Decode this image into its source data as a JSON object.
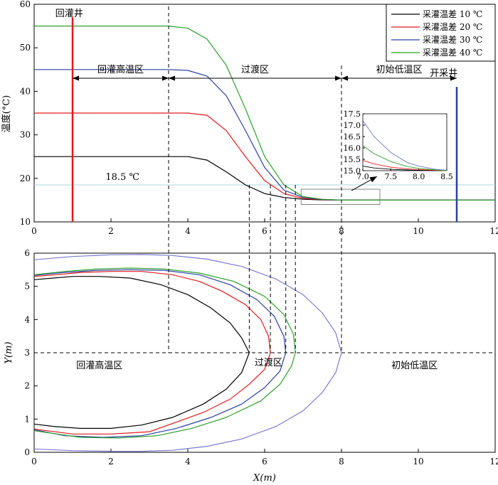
{
  "chart_data": [
    {
      "type": "line",
      "ylabel": "温度(°C)",
      "xlim": [
        0,
        12
      ],
      "ylim": [
        10,
        60
      ],
      "xticks": [
        0,
        2,
        4,
        6,
        8,
        10,
        12
      ],
      "yticks": [
        10,
        20,
        30,
        40,
        50,
        60
      ],
      "legend": {
        "position": "top-right",
        "entries": [
          "采灌温差 10 ℃",
          "采灌温差 20 ℃",
          "采灌温差 30 ℃",
          "采灌温差 40 ℃"
        ]
      },
      "series": [
        {
          "name": "采灌温差 10 ℃",
          "color": "#000000",
          "x": [
            0,
            3.5,
            4.0,
            4.5,
            5.0,
            5.5,
            6.0,
            6.5,
            7.0,
            7.5,
            8.0,
            9.0,
            10.0,
            11.0,
            12.0
          ],
          "y": [
            25,
            25,
            25,
            24.2,
            21.5,
            18.5,
            16.5,
            15.6,
            15.2,
            15.05,
            15.0,
            15.0,
            15.0,
            15.0,
            15.0
          ]
        },
        {
          "name": "采灌温差 20 ℃",
          "color": "#e41a1c",
          "x": [
            0,
            3.5,
            4.0,
            4.5,
            5.0,
            5.5,
            6.0,
            6.5,
            7.0,
            7.5,
            8.0,
            9.0,
            10.0,
            11.0,
            12.0
          ],
          "y": [
            35,
            35,
            35,
            34.5,
            31.0,
            25.0,
            19.5,
            16.5,
            15.4,
            15.1,
            15.0,
            15.0,
            15.0,
            15.0,
            15.0
          ]
        },
        {
          "name": "采灌温差 30 ℃",
          "color": "#2b3fa3",
          "x": [
            0,
            3.5,
            4.0,
            4.5,
            5.0,
            5.5,
            6.0,
            6.5,
            7.0,
            7.5,
            8.0,
            9.0,
            10.0,
            11.0,
            12.0
          ],
          "y": [
            45,
            45,
            44.8,
            43.5,
            39.0,
            31.0,
            22.5,
            17.3,
            15.6,
            15.15,
            15.0,
            15.0,
            15.0,
            15.0,
            15.0
          ]
        },
        {
          "name": "采灌温差 40 ℃",
          "color": "#2ca02c",
          "x": [
            0,
            3.5,
            4.0,
            4.5,
            5.0,
            5.5,
            6.0,
            6.5,
            7.0,
            7.5,
            8.0,
            9.0,
            10.0,
            11.0,
            12.0
          ],
          "y": [
            55,
            55,
            54.5,
            52.0,
            46.0,
            36.0,
            25.0,
            18.5,
            15.8,
            15.2,
            15.0,
            15.0,
            15.0,
            15.0,
            15.0
          ]
        }
      ],
      "reference_line": {
        "y": 18.5,
        "label": "18.5 ℃",
        "color": "#a8d4dc"
      },
      "wells": [
        {
          "label": "回灌井",
          "x": 1,
          "color": "#e41a1c"
        },
        {
          "label": "开采井",
          "x": 11,
          "color": "#2b3fa3"
        }
      ],
      "dividers_x": [
        3.5,
        8.0
      ],
      "zones": [
        "回灌高温区",
        "过渡区",
        "初始低温区"
      ],
      "zone_arrow_y": 43,
      "inset": {
        "xlim": [
          7.0,
          8.5
        ],
        "ylim": [
          15.0,
          17.5
        ],
        "xticks": [
          "7.0",
          "7.5",
          "8.0",
          "8.5"
        ],
        "yticks": [
          "15.0",
          "15.5",
          "16.0",
          "16.5",
          "17.0",
          "17.5"
        ],
        "series": [
          {
            "color": "#000000",
            "x": [
              7.0,
              7.2,
              7.5,
              7.8,
              8.0,
              8.3,
              8.5
            ],
            "y": [
              15.2,
              15.12,
              15.06,
              15.03,
              15.02,
              15.01,
              15.0
            ]
          },
          {
            "color": "#e41a1c",
            "x": [
              7.0,
              7.2,
              7.5,
              7.8,
              8.0,
              8.3,
              8.5
            ],
            "y": [
              15.45,
              15.3,
              15.15,
              15.08,
              15.05,
              15.02,
              15.0
            ]
          },
          {
            "color": "#2ca02c",
            "x": [
              7.0,
              7.2,
              7.5,
              7.8,
              8.0,
              8.3,
              8.5
            ],
            "y": [
              16.1,
              15.75,
              15.4,
              15.18,
              15.1,
              15.03,
              15.0
            ]
          },
          {
            "color": "#6b78b8",
            "x": [
              7.0,
              7.2,
              7.5,
              7.8,
              8.0,
              8.3,
              8.5
            ],
            "y": [
              17.2,
              16.5,
              15.8,
              15.35,
              15.2,
              15.06,
              15.02
            ]
          }
        ],
        "zoom_box": {
          "x": [
            6.95,
            9.0
          ],
          "y": [
            14.0,
            17.5
          ]
        }
      }
    },
    {
      "type": "line",
      "xlabel": "X(m)",
      "ylabel": "Y(m)",
      "xlim": [
        0,
        12
      ],
      "ylim": [
        0,
        6
      ],
      "xticks": [
        0,
        2,
        4,
        6,
        8,
        10,
        12
      ],
      "yticks": [
        0,
        1,
        2,
        3,
        4,
        5,
        6
      ],
      "centerline_y": 3,
      "dividers_x": [
        3.5,
        8.0
      ],
      "zones": [
        "回灌高温区",
        "过渡区",
        "初始低温区"
      ],
      "fronts_x": [
        5.6,
        6.15,
        6.55,
        6.8
      ],
      "series": [
        {
          "color": "#000000",
          "x": [
            0,
            0.5,
            1.0,
            1.7,
            2.5,
            3.3,
            4.0,
            4.6,
            5.1,
            5.4,
            5.6,
            5.4,
            5.0,
            4.4,
            3.6,
            2.8,
            2.0,
            1.2,
            0.5,
            0
          ],
          "y": [
            5.2,
            5.25,
            5.3,
            5.3,
            5.25,
            5.05,
            4.75,
            4.35,
            3.9,
            3.45,
            3.0,
            2.4,
            1.9,
            1.45,
            1.05,
            0.82,
            0.72,
            0.72,
            0.78,
            0.85
          ]
        },
        {
          "color": "#e41a1c",
          "x": [
            0,
            0.6,
            1.2,
            2.0,
            2.8,
            3.6,
            4.3,
            4.9,
            5.5,
            5.9,
            6.1,
            6.15,
            6.0,
            5.6,
            5.1,
            4.4,
            3.8,
            3.0,
            2.0,
            1.0,
            0
          ],
          "y": [
            5.3,
            5.35,
            5.42,
            5.45,
            5.45,
            5.35,
            5.15,
            4.85,
            4.45,
            4.0,
            3.5,
            3.0,
            2.5,
            2.05,
            1.6,
            1.2,
            0.95,
            0.62,
            0.55,
            0.55,
            0.7
          ]
        },
        {
          "color": "#2b3fa3",
          "x": [
            0,
            0.8,
            1.6,
            2.5,
            3.4,
            4.3,
            5.1,
            5.8,
            6.25,
            6.5,
            6.55,
            6.4,
            6.0,
            5.4,
            4.6,
            3.7,
            2.8,
            1.8,
            0.8,
            0
          ],
          "y": [
            5.33,
            5.42,
            5.48,
            5.5,
            5.48,
            5.35,
            5.05,
            4.6,
            4.1,
            3.5,
            3.0,
            2.45,
            1.95,
            1.45,
            1.05,
            0.72,
            0.5,
            0.45,
            0.5,
            0.68
          ]
        },
        {
          "color": "#2ca02c",
          "x": [
            0,
            0.8,
            1.6,
            2.5,
            3.4,
            4.3,
            5.2,
            6.0,
            6.5,
            6.75,
            6.8,
            6.7,
            6.4,
            5.9,
            5.0,
            4.1,
            3.2,
            2.2,
            1.2,
            0
          ],
          "y": [
            5.35,
            5.45,
            5.52,
            5.55,
            5.52,
            5.4,
            5.15,
            4.7,
            4.15,
            3.55,
            3.0,
            2.6,
            2.05,
            1.55,
            1.05,
            0.72,
            0.5,
            0.43,
            0.45,
            0.65
          ]
        },
        {
          "color": "#7b7bd1",
          "x": [
            0,
            1.0,
            2.0,
            2.8,
            3.6,
            4.5,
            5.4,
            6.3,
            7.0,
            7.5,
            7.85,
            8.0,
            7.85,
            7.5,
            7.0,
            6.3,
            5.4,
            4.5,
            3.6,
            2.8,
            2.0,
            1.0,
            0
          ],
          "y": [
            5.8,
            5.9,
            5.95,
            5.96,
            5.93,
            5.82,
            5.6,
            5.22,
            4.75,
            4.2,
            3.6,
            3.0,
            2.4,
            1.8,
            1.25,
            0.78,
            0.4,
            0.18,
            0.06,
            0.03,
            0.03,
            0.05,
            0.1
          ]
        }
      ]
    }
  ]
}
